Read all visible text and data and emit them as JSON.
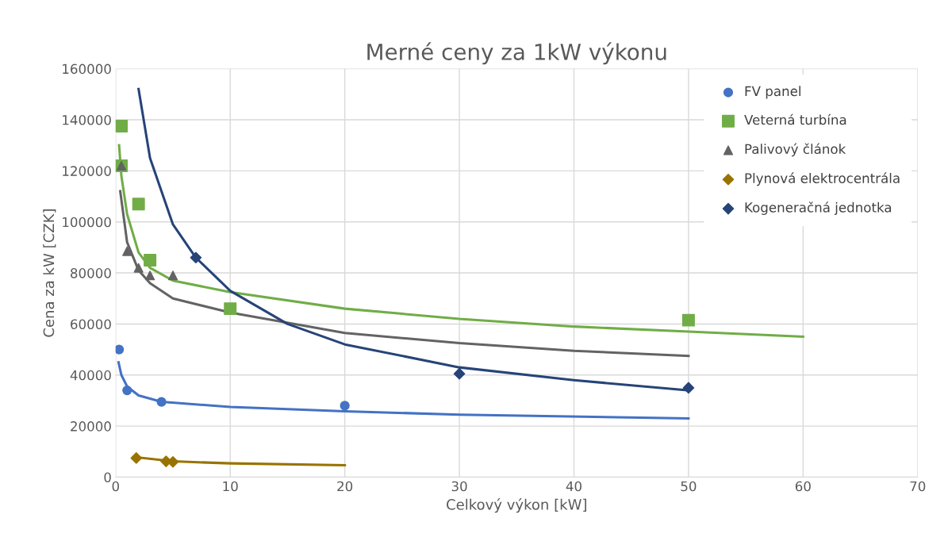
{
  "chart_data": {
    "type": "scatter",
    "title": "Merné ceny za 1kW výkonu",
    "xlabel": "Celkový výkon [kW]",
    "ylabel": "Cena za kW [CZK]",
    "xlim": [
      0,
      70
    ],
    "xticks": [
      0,
      10,
      20,
      30,
      40,
      50,
      60,
      70
    ],
    "ylim": [
      0,
      160000
    ],
    "yticks": [
      0,
      20000,
      40000,
      60000,
      80000,
      100000,
      120000,
      140000,
      160000
    ],
    "grid": true,
    "legend": "top right",
    "series": [
      {
        "name": "FV panel",
        "color": "#4472c4",
        "marker": "circle",
        "x": [
          0.3,
          1,
          4,
          20
        ],
        "values": [
          50000,
          34000,
          29500,
          28000
        ]
      },
      {
        "name": "Veterná turbína",
        "color": "#70ad47",
        "marker": "square",
        "x": [
          0.5,
          0.5,
          2,
          3,
          10,
          50
        ],
        "values": [
          137500,
          122000,
          107000,
          85000,
          66000,
          61500
        ]
      },
      {
        "name": "Palivový článok",
        "color": "#636363",
        "marker": "triangle",
        "x": [
          0.5,
          1,
          2,
          3,
          5
        ],
        "values": [
          122000,
          88500,
          82000,
          79000,
          79000
        ]
      },
      {
        "name": "Plynová elektrocentrála",
        "color": "#997300",
        "marker": "diamond",
        "x": [
          1.8,
          4.4,
          5
        ],
        "values": [
          7500,
          6200,
          6000
        ]
      },
      {
        "name": "Kogeneračná jednotka",
        "color": "#264478",
        "marker": "diamond",
        "x": [
          7,
          30,
          50
        ],
        "values": [
          86000,
          40500,
          35000
        ]
      },
      {
        "type": "line",
        "color": "#4472c4",
        "marker": "none",
        "x": [
          0.25,
          0.5,
          1,
          2,
          4,
          10,
          20,
          30,
          50
        ],
        "values": [
          45000,
          40000,
          35500,
          32000,
          29500,
          27500,
          25800,
          24500,
          23000
        ]
      },
      {
        "type": "line",
        "color": "#70ad47",
        "marker": "none",
        "x": [
          0.3,
          0.5,
          1,
          2,
          3,
          5,
          10,
          20,
          30,
          40,
          50,
          60
        ],
        "values": [
          130000,
          118000,
          103000,
          88000,
          82000,
          77000,
          72500,
          66000,
          62000,
          59000,
          57000,
          55000
        ]
      },
      {
        "type": "line",
        "color": "#636363",
        "marker": "none",
        "x": [
          0.4,
          1,
          2,
          3,
          5,
          10,
          20,
          30,
          40,
          50
        ],
        "values": [
          112000,
          92000,
          81000,
          76000,
          70000,
          64500,
          56500,
          52500,
          49500,
          47500
        ]
      },
      {
        "type": "line",
        "color": "#997300",
        "marker": "none",
        "x": [
          1.8,
          5,
          10,
          20
        ],
        "values": [
          7800,
          6200,
          5400,
          4700
        ]
      },
      {
        "type": "line",
        "color": "#264478",
        "marker": "none",
        "x": [
          2,
          3,
          5,
          7,
          10,
          15,
          20,
          30,
          40,
          50
        ],
        "values": [
          152000,
          125000,
          99000,
          86000,
          73000,
          60000,
          52000,
          43000,
          38000,
          34000
        ]
      }
    ]
  }
}
